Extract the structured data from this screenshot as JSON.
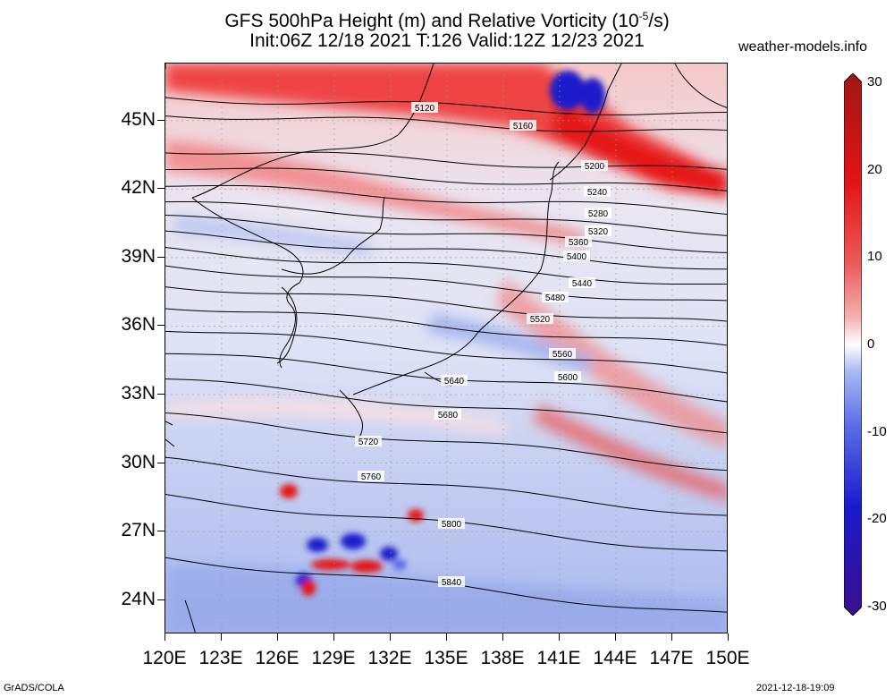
{
  "title": {
    "line1": "GFS 500hPa Height (m) and Relative Vorticity (10",
    "line1_sup": "-5",
    "line1_end": "/s)",
    "line2": "Init:06Z 12/18 2021 T:126 Valid:12Z 12/23 2021"
  },
  "site_label": "weather-models.info",
  "axes": {
    "lat_ticks": [
      "45N",
      "42N",
      "39N",
      "36N",
      "33N",
      "30N",
      "27N",
      "24N"
    ],
    "lon_ticks": [
      "120E",
      "123E",
      "126E",
      "129E",
      "132E",
      "135E",
      "138E",
      "141E",
      "144E",
      "147E",
      "150E"
    ],
    "lat_range": [
      22.5,
      47.5
    ],
    "lon_range": [
      120,
      150
    ]
  },
  "colorbar": {
    "labels": [
      "30",
      "20",
      "10",
      "0",
      "-10",
      "-20",
      "-30"
    ],
    "range": [
      -30,
      30
    ],
    "colors": [
      "#3a0e8c",
      "#1a1acc",
      "#5a6ee6",
      "#a9b9f0",
      "#ffffff",
      "#f4b0b0",
      "#ea5a5a",
      "#e41414",
      "#9e1616"
    ]
  },
  "contours": [
    {
      "label": "5120"
    },
    {
      "label": "5160"
    },
    {
      "label": "5200"
    },
    {
      "label": "5240"
    },
    {
      "label": "5280"
    },
    {
      "label": "5320"
    },
    {
      "label": "5360"
    },
    {
      "label": "5400"
    },
    {
      "label": "5440"
    },
    {
      "label": "5480"
    },
    {
      "label": "5520"
    },
    {
      "label": "5560"
    },
    {
      "label": "5600"
    },
    {
      "label": "5640"
    },
    {
      "label": "5680"
    },
    {
      "label": "5720"
    },
    {
      "label": "5760"
    },
    {
      "label": "5800"
    },
    {
      "label": "5840"
    }
  ],
  "footer": {
    "left": "GrADS/COLA",
    "right": "2021-12-18-19:09"
  }
}
